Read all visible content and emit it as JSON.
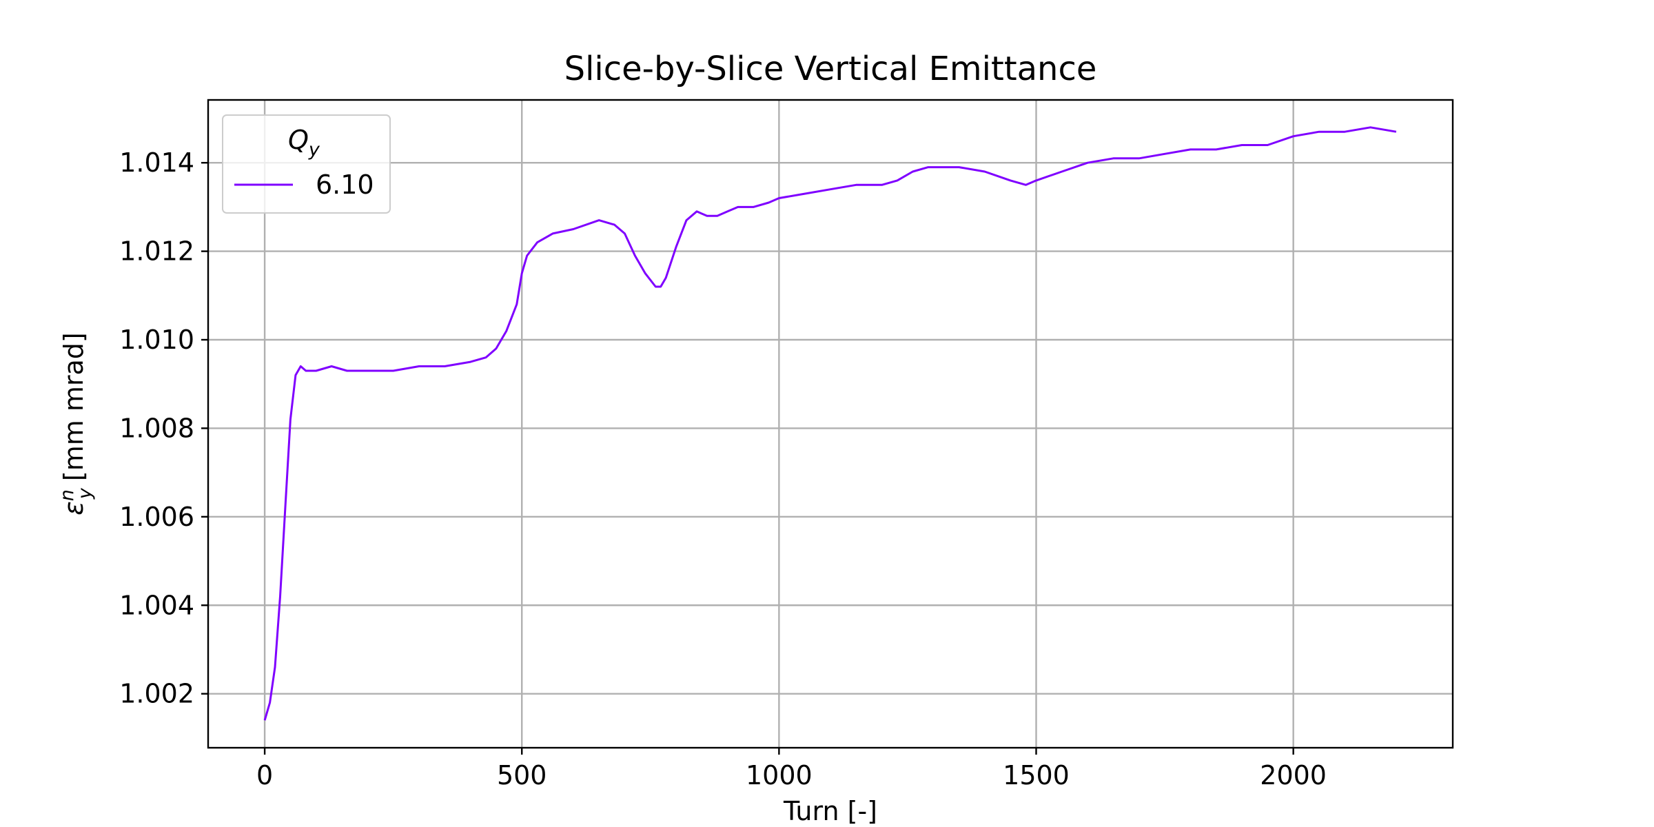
{
  "chart_data": {
    "type": "line",
    "title": "Slice-by-Slice Vertical Emittance",
    "xlabel": "Turn [-]",
    "ylabel": {
      "symbol": "ε",
      "superscript": "n",
      "subscript": "y",
      "unit": "[mm mrad]"
    },
    "xlim": [
      -110,
      2310
    ],
    "ylim": [
      1.00078,
      1.01542
    ],
    "xticks": [
      0,
      500,
      1000,
      1500,
      2000
    ],
    "xtick_labels": [
      "0",
      "500",
      "1000",
      "1500",
      "2000"
    ],
    "yticks": [
      1.002,
      1.004,
      1.006,
      1.008,
      1.01,
      1.012,
      1.014
    ],
    "ytick_labels": [
      "1.002",
      "1.004",
      "1.006",
      "1.008",
      "1.010",
      "1.012",
      "1.014"
    ],
    "grid": true,
    "legend": {
      "title_symbol": "Q",
      "title_subscript": "y",
      "placement": "upper-left",
      "entries": [
        "6.10"
      ]
    },
    "colors": {
      "series": "#7f00ff",
      "grid": "#b0b0b0",
      "axes": "#000000"
    },
    "series": [
      {
        "name": "6.10",
        "x": [
          0,
          10,
          20,
          30,
          40,
          50,
          60,
          70,
          80,
          100,
          130,
          160,
          200,
          250,
          300,
          350,
          400,
          430,
          450,
          470,
          490,
          500,
          510,
          530,
          560,
          600,
          650,
          680,
          700,
          720,
          740,
          760,
          770,
          780,
          800,
          820,
          840,
          860,
          880,
          900,
          920,
          950,
          980,
          1000,
          1050,
          1100,
          1150,
          1200,
          1230,
          1260,
          1290,
          1320,
          1350,
          1400,
          1450,
          1480,
          1500,
          1550,
          1600,
          1650,
          1700,
          1750,
          1800,
          1850,
          1900,
          1950,
          2000,
          2050,
          2100,
          2150,
          2200
        ],
        "y": [
          1.0014,
          1.0018,
          1.0026,
          1.0042,
          1.0062,
          1.0082,
          1.0092,
          1.0094,
          1.0093,
          1.0093,
          1.0094,
          1.0093,
          1.0093,
          1.0093,
          1.0094,
          1.0094,
          1.0095,
          1.0096,
          1.0098,
          1.0102,
          1.0108,
          1.0115,
          1.0119,
          1.0122,
          1.0124,
          1.0125,
          1.0127,
          1.0126,
          1.0124,
          1.0119,
          1.0115,
          1.0112,
          1.0112,
          1.0114,
          1.0121,
          1.0127,
          1.0129,
          1.0128,
          1.0128,
          1.0129,
          1.013,
          1.013,
          1.0131,
          1.0132,
          1.0133,
          1.0134,
          1.0135,
          1.0135,
          1.0136,
          1.0138,
          1.0139,
          1.0139,
          1.0139,
          1.0138,
          1.0136,
          1.0135,
          1.0136,
          1.0138,
          1.014,
          1.0141,
          1.0141,
          1.0142,
          1.0143,
          1.0143,
          1.0144,
          1.0144,
          1.0146,
          1.0147,
          1.0147,
          1.0148,
          1.0147
        ]
      }
    ]
  }
}
